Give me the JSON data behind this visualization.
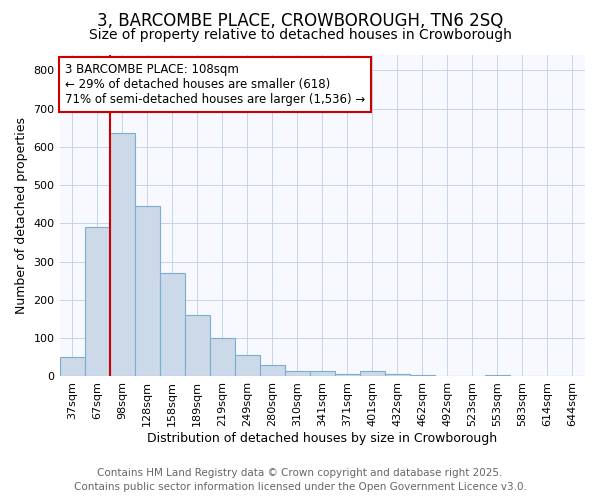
{
  "title_line1": "3, BARCOMBE PLACE, CROWBOROUGH, TN6 2SQ",
  "title_line2": "Size of property relative to detached houses in Crowborough",
  "xlabel": "Distribution of detached houses by size in Crowborough",
  "ylabel": "Number of detached properties",
  "categories": [
    "37sqm",
    "67sqm",
    "98sqm",
    "128sqm",
    "158sqm",
    "189sqm",
    "219sqm",
    "249sqm",
    "280sqm",
    "310sqm",
    "341sqm",
    "371sqm",
    "401sqm",
    "432sqm",
    "462sqm",
    "492sqm",
    "523sqm",
    "553sqm",
    "583sqm",
    "614sqm",
    "644sqm"
  ],
  "values": [
    50,
    390,
    635,
    445,
    270,
    160,
    100,
    55,
    30,
    15,
    15,
    7,
    15,
    7,
    5,
    2,
    0,
    5,
    0,
    0,
    0
  ],
  "bar_color": "#ccd9e8",
  "bar_edge_color": "#7aafd4",
  "red_line_index": 2,
  "annotation_text": "3 BARCOMBE PLACE: 108sqm\n← 29% of detached houses are smaller (618)\n71% of semi-detached houses are larger (1,536) →",
  "annotation_box_facecolor": "#ffffff",
  "annotation_box_edgecolor": "#cc0000",
  "vline_color": "#cc0000",
  "ylim": [
    0,
    840
  ],
  "yticks": [
    0,
    100,
    200,
    300,
    400,
    500,
    600,
    700,
    800
  ],
  "footnote_line1": "Contains HM Land Registry data © Crown copyright and database right 2025.",
  "footnote_line2": "Contains public sector information licensed under the Open Government Licence v3.0.",
  "bg_color": "#ffffff",
  "plot_bg_color": "#f8f8ff",
  "grid_color": "#c5d5e8",
  "title_fontsize": 12,
  "subtitle_fontsize": 10,
  "axis_label_fontsize": 9,
  "tick_fontsize": 8,
  "annotation_fontsize": 8.5,
  "footnote_fontsize": 7.5
}
